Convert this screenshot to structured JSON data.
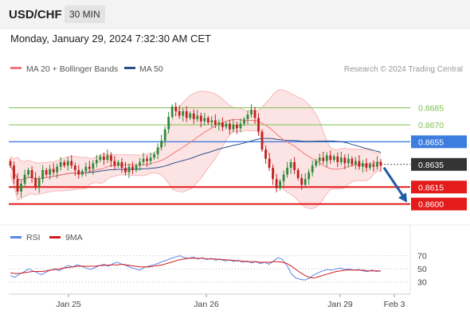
{
  "header": {
    "symbol": "USD/CHF",
    "interval": "30 MIN"
  },
  "timestamp": "Monday, January 29, 2024 7:32:30 AM CET",
  "legend": {
    "ma20": "MA 20 + Bollinger Bands",
    "ma50": "MA 50",
    "copyright": "Research © 2024 Trading Central",
    "rsi": "RSI",
    "rsi_ma": "9MA"
  },
  "colors": {
    "ma20": "#f07878",
    "ma50": "#2c4f8c",
    "band_fill": "#fde4e4",
    "band_line": "#f6b7b7",
    "candle_up": "#2e8b3a",
    "candle_down": "#c21f1f",
    "resistance": "#7bbf4a",
    "pivot": "#3e7de0",
    "support": "#e31b1b",
    "last": "#333333",
    "arrow": "#1f5aa6",
    "rsi": "#5b86e6",
    "rsi_ma": "#d21b1b"
  },
  "chart_data": [
    {
      "type": "candlestick",
      "title": "USD/CHF 30 MIN",
      "y_range": [
        0.8585,
        0.871
      ],
      "x_range": [
        "Jan 24",
        "Feb 3"
      ],
      "x_ticks": [
        "Jan 25",
        "Jan 26",
        "Jan 29",
        "Feb 3"
      ],
      "closes": [
        0.8634,
        0.8622,
        0.8611,
        0.8618,
        0.8626,
        0.863,
        0.8623,
        0.8615,
        0.8622,
        0.863,
        0.8626,
        0.8631,
        0.8628,
        0.8633,
        0.8637,
        0.8634,
        0.8638,
        0.8634,
        0.863,
        0.8626,
        0.8629,
        0.8633,
        0.8631,
        0.8636,
        0.8639,
        0.8642,
        0.8639,
        0.8643,
        0.8638,
        0.8634,
        0.8637,
        0.8632,
        0.8628,
        0.8633,
        0.863,
        0.8634,
        0.8637,
        0.864,
        0.8638,
        0.8641,
        0.8644,
        0.865,
        0.8656,
        0.8666,
        0.8677,
        0.8686,
        0.8682,
        0.8678,
        0.8682,
        0.8676,
        0.868,
        0.8675,
        0.8678,
        0.8673,
        0.8676,
        0.8672,
        0.8674,
        0.867,
        0.8672,
        0.8668,
        0.8671,
        0.8666,
        0.867,
        0.8667,
        0.8671,
        0.8675,
        0.8679,
        0.8683,
        0.8676,
        0.8664,
        0.8648,
        0.864,
        0.8632,
        0.8622,
        0.8614,
        0.862,
        0.8626,
        0.8632,
        0.8637,
        0.863,
        0.8623,
        0.8617,
        0.8622,
        0.8628,
        0.8634,
        0.8638,
        0.8641,
        0.8638,
        0.8643,
        0.8639,
        0.8642,
        0.8637,
        0.8641,
        0.8636,
        0.864,
        0.8635,
        0.8638,
        0.8633,
        0.8636,
        0.8632,
        0.8635,
        0.8633,
        0.8637,
        0.8634
      ],
      "indicators": [
        "MA 20 + Bollinger Bands",
        "MA 50"
      ],
      "levels": [
        {
          "label": "0.8685",
          "value": 0.8685,
          "kind": "resistance"
        },
        {
          "label": "0.8670",
          "value": 0.867,
          "kind": "resistance"
        },
        {
          "label": "0.8655",
          "value": 0.8655,
          "kind": "pivot"
        },
        {
          "label": "0.8635",
          "value": 0.8635,
          "kind": "last"
        },
        {
          "label": "0.8615",
          "value": 0.8615,
          "kind": "support"
        },
        {
          "label": "0.8600",
          "value": 0.86,
          "kind": "support"
        }
      ],
      "forecast": {
        "direction": "down",
        "from": 0.8635,
        "to": 0.86
      }
    },
    {
      "type": "line",
      "title": "RSI",
      "y_range": [
        20,
        78
      ],
      "y_ticks": [
        70,
        50,
        30
      ],
      "series": [
        {
          "name": "RSI",
          "values": [
            40,
            37,
            42,
            45,
            50,
            47,
            44,
            41,
            45,
            48,
            50,
            47,
            52,
            55,
            53,
            56,
            54,
            51,
            49,
            52,
            55,
            57,
            54,
            58,
            60,
            57,
            55,
            52,
            50,
            48,
            52,
            54,
            56,
            58,
            61,
            63,
            66,
            68,
            70,
            67,
            66,
            68,
            65,
            67,
            64,
            66,
            63,
            65,
            62,
            64,
            61,
            63,
            60,
            62,
            59,
            61,
            58,
            60,
            57,
            62,
            67,
            64,
            55,
            42,
            36,
            34,
            33,
            36,
            41,
            44,
            47,
            49,
            48,
            50,
            51,
            49,
            50,
            48,
            49,
            47,
            46,
            48,
            46,
            47
          ]
        },
        {
          "name": "9MA",
          "values": [
            44,
            43,
            43,
            44,
            45,
            46,
            46,
            46,
            47,
            48,
            49,
            50,
            51,
            52,
            53,
            54,
            54,
            54,
            54,
            54,
            55,
            55,
            56,
            56,
            56,
            57,
            56,
            55,
            54,
            53,
            53,
            53,
            54,
            55,
            56,
            58,
            60,
            62,
            64,
            65,
            66,
            66,
            66,
            66,
            65,
            65,
            65,
            64,
            64,
            63,
            63,
            62,
            62,
            61,
            61,
            61,
            60,
            60,
            60,
            61,
            61,
            60,
            58,
            54,
            49,
            44,
            40,
            37,
            36,
            38,
            40,
            42,
            44,
            46,
            47,
            48,
            48,
            48,
            48,
            48,
            47,
            47,
            47,
            47
          ]
        }
      ]
    }
  ]
}
